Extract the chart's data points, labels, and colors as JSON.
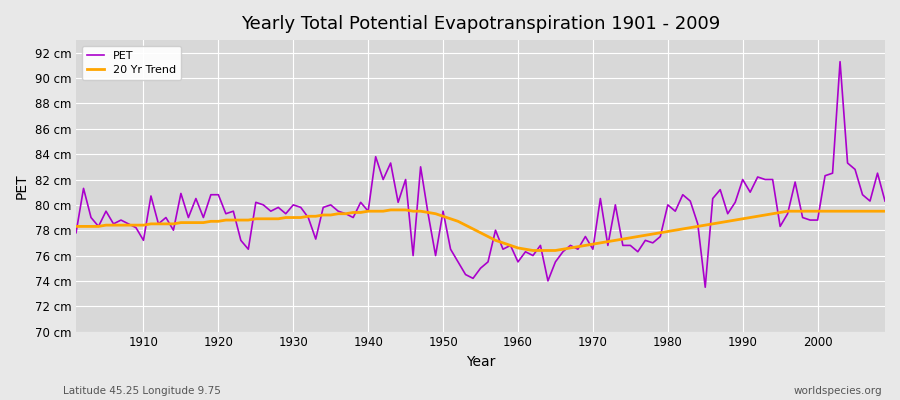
{
  "title": "Yearly Total Potential Evapotranspiration 1901 - 2009",
  "xlabel": "Year",
  "ylabel": "PET",
  "subtitle": "Latitude 45.25 Longitude 9.75",
  "watermark": "worldspecies.org",
  "pet_color": "#AA00CC",
  "trend_color": "#FFA500",
  "bg_color": "#E8E8E8",
  "plot_bg_color": "#D8D8D8",
  "ylim": [
    70,
    93
  ],
  "yticks": [
    70,
    72,
    74,
    76,
    78,
    80,
    82,
    84,
    86,
    88,
    90,
    92
  ],
  "xlim": [
    1901,
    2009
  ],
  "years": [
    1901,
    1902,
    1903,
    1904,
    1905,
    1906,
    1907,
    1908,
    1909,
    1910,
    1911,
    1912,
    1913,
    1914,
    1915,
    1916,
    1917,
    1918,
    1919,
    1920,
    1921,
    1922,
    1923,
    1924,
    1925,
    1926,
    1927,
    1928,
    1929,
    1930,
    1931,
    1932,
    1933,
    1934,
    1935,
    1936,
    1937,
    1938,
    1939,
    1940,
    1941,
    1942,
    1943,
    1944,
    1945,
    1946,
    1947,
    1948,
    1949,
    1950,
    1951,
    1952,
    1953,
    1954,
    1955,
    1956,
    1957,
    1958,
    1959,
    1960,
    1961,
    1962,
    1963,
    1964,
    1965,
    1966,
    1967,
    1968,
    1969,
    1970,
    1971,
    1972,
    1973,
    1974,
    1975,
    1976,
    1977,
    1978,
    1979,
    1980,
    1981,
    1982,
    1983,
    1984,
    1985,
    1986,
    1987,
    1988,
    1989,
    1990,
    1991,
    1992,
    1993,
    1994,
    1995,
    1996,
    1997,
    1998,
    1999,
    2000,
    2001,
    2002,
    2003,
    2004,
    2005,
    2006,
    2007,
    2008,
    2009
  ],
  "pet_values": [
    77.8,
    81.3,
    79.0,
    78.3,
    79.5,
    78.5,
    78.8,
    78.5,
    78.2,
    77.2,
    80.7,
    78.5,
    79.0,
    78.0,
    80.9,
    79.0,
    80.5,
    79.0,
    80.8,
    80.8,
    79.3,
    79.5,
    77.2,
    76.5,
    80.2,
    80.0,
    79.5,
    79.8,
    79.3,
    80.0,
    79.8,
    79.0,
    77.3,
    79.8,
    80.0,
    79.5,
    79.3,
    79.0,
    80.2,
    79.5,
    83.8,
    82.0,
    83.3,
    80.2,
    82.0,
    76.0,
    83.0,
    79.3,
    76.0,
    79.5,
    76.5,
    75.5,
    74.5,
    74.2,
    75.0,
    75.5,
    78.0,
    76.5,
    76.8,
    75.5,
    76.3,
    76.0,
    76.8,
    74.0,
    75.5,
    76.3,
    76.8,
    76.5,
    77.5,
    76.5,
    80.5,
    76.8,
    80.0,
    76.8,
    76.8,
    76.3,
    77.2,
    77.0,
    77.5,
    80.0,
    79.5,
    80.8,
    80.3,
    78.5,
    73.5,
    80.5,
    81.2,
    79.3,
    80.2,
    82.0,
    81.0,
    82.2,
    82.0,
    82.0,
    78.3,
    79.3,
    81.8,
    79.0,
    78.8,
    78.8,
    82.3,
    82.5,
    91.3,
    83.3,
    82.8,
    80.8,
    80.3,
    82.5,
    80.3
  ],
  "trend_values": [
    78.3,
    78.3,
    78.3,
    78.3,
    78.4,
    78.4,
    78.4,
    78.4,
    78.4,
    78.4,
    78.5,
    78.5,
    78.5,
    78.5,
    78.6,
    78.6,
    78.6,
    78.6,
    78.7,
    78.7,
    78.8,
    78.8,
    78.8,
    78.8,
    78.9,
    78.9,
    78.9,
    78.9,
    79.0,
    79.0,
    79.0,
    79.1,
    79.1,
    79.2,
    79.2,
    79.3,
    79.3,
    79.4,
    79.4,
    79.5,
    79.5,
    79.5,
    79.6,
    79.6,
    79.6,
    79.5,
    79.5,
    79.4,
    79.3,
    79.1,
    78.9,
    78.7,
    78.4,
    78.1,
    77.8,
    77.5,
    77.2,
    77.0,
    76.8,
    76.6,
    76.5,
    76.4,
    76.4,
    76.4,
    76.4,
    76.5,
    76.6,
    76.7,
    76.8,
    76.9,
    77.0,
    77.1,
    77.2,
    77.3,
    77.4,
    77.5,
    77.6,
    77.7,
    77.8,
    77.9,
    78.0,
    78.1,
    78.2,
    78.3,
    78.4,
    78.5,
    78.6,
    78.7,
    78.8,
    78.9,
    79.0,
    79.1,
    79.2,
    79.3,
    79.4,
    79.5,
    79.5,
    79.5,
    79.5,
    79.5,
    79.5,
    79.5,
    79.5,
    79.5,
    79.5,
    79.5,
    79.5,
    79.5,
    79.5
  ]
}
